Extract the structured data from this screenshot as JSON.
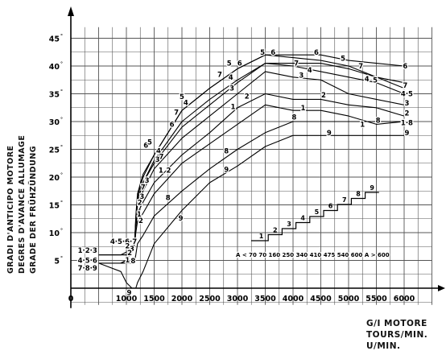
{
  "chart_data": {
    "type": "line",
    "ylabel_lines": [
      "GRADI D'ANTICIPO MOTORE",
      "DEGRES D'AVANCE ALLUMAGE",
      "GRADE DER FRÜHZÜNDUNG"
    ],
    "xlabel_lines": [
      "G/I MOTORE",
      "TOURS/MIN.",
      "U/MIN."
    ],
    "x_origin_label": "0",
    "x_ticks": [
      "1000",
      "1500",
      "2000",
      "2500",
      "3000",
      "3500",
      "4000",
      "4500",
      "5000",
      "5500",
      "6000"
    ],
    "y_ticks": [
      "5",
      "10",
      "15",
      "20",
      "25",
      "30",
      "35",
      "40",
      "45"
    ],
    "xlim": [
      0,
      6500
    ],
    "ylim": [
      -3,
      47
    ],
    "grid": true,
    "series": [
      {
        "name": "1",
        "x": [
          500,
          900,
          1000,
          1100,
          1150,
          1170,
          1200,
          1300,
          1500,
          2000,
          2500,
          3000,
          3500,
          4000,
          4500,
          5000,
          5500,
          6000
        ],
        "y": [
          6,
          6,
          6,
          6.5,
          8,
          10,
          12,
          13.5,
          17,
          22.5,
          26,
          29.5,
          33,
          32,
          32,
          31,
          29.5,
          30
        ]
      },
      {
        "name": "2",
        "x": [
          500,
          900,
          1000,
          1100,
          1150,
          1170,
          1200,
          1300,
          1500,
          2000,
          2500,
          3000,
          3500,
          4000,
          4500,
          5000,
          5500,
          6000
        ],
        "y": [
          6,
          6,
          6,
          7,
          8.5,
          11,
          13.5,
          15.5,
          19,
          24,
          28,
          32.5,
          35,
          34,
          34,
          33,
          32.5,
          31
        ]
      },
      {
        "name": "3",
        "x": [
          500,
          900,
          1000,
          1100,
          1150,
          1170,
          1200,
          1300,
          1500,
          2000,
          2500,
          3000,
          3500,
          4000,
          4500,
          5000,
          5500,
          6000
        ],
        "y": [
          6,
          6,
          6.5,
          7.5,
          9,
          12,
          15,
          17.5,
          21.5,
          27,
          31,
          35,
          39,
          38,
          37.5,
          35,
          34,
          33
        ]
      },
      {
        "name": "4",
        "x": [
          900,
          1000,
          1100,
          1150,
          1170,
          1200,
          1300,
          1500,
          2000,
          2500,
          3000,
          3500,
          4000,
          4500,
          5000,
          5500,
          6000
        ],
        "y": [
          4.5,
          5,
          6.5,
          8,
          12,
          16,
          19,
          23,
          30,
          34,
          37.5,
          40.5,
          40,
          39,
          38,
          37,
          35
        ]
      },
      {
        "name": "5",
        "x": [
          900,
          1000,
          1100,
          1150,
          1170,
          1200,
          1300,
          1500,
          2000,
          2500,
          3000,
          3500,
          4000,
          4500,
          5000,
          5500,
          6000
        ],
        "y": [
          4.5,
          5,
          7,
          8.5,
          12.5,
          16.5,
          20,
          24,
          32,
          36,
          39.5,
          42,
          41.5,
          41,
          40,
          38,
          36
        ]
      },
      {
        "name": "6",
        "x": [
          900,
          1000,
          1100,
          1150,
          1170,
          1200,
          1300,
          1500,
          2000,
          2500,
          3000,
          3500,
          4000,
          4500,
          5000,
          5500,
          6000
        ],
        "y": [
          4.5,
          5,
          7,
          8.5,
          13,
          17,
          20.5,
          24,
          32,
          36,
          39.5,
          42,
          42,
          42,
          41,
          40.5,
          40
        ]
      },
      {
        "name": "7",
        "x": [
          900,
          1000,
          1100,
          1150,
          1170,
          1200,
          1300,
          1500,
          2000,
          2500,
          3000,
          3500,
          4000,
          4500,
          5000,
          5500,
          6000
        ],
        "y": [
          4.5,
          5,
          6.5,
          8,
          12,
          15.5,
          19,
          22.5,
          29,
          33,
          37,
          40.5,
          40.5,
          40.5,
          39.5,
          38,
          37
        ]
      },
      {
        "name": "8",
        "x": [
          500,
          900,
          1000,
          1100,
          1150,
          1170,
          1200,
          1300,
          1500,
          2000,
          2500,
          3000,
          3500,
          4000,
          4500,
          5000,
          5500,
          6000
        ],
        "y": [
          4.5,
          4.5,
          4.5,
          4.5,
          5,
          6,
          8,
          9.5,
          13,
          17.5,
          21.5,
          25,
          28,
          30,
          30,
          30,
          30,
          30
        ]
      },
      {
        "name": "9",
        "x": [
          500,
          900,
          1000,
          1100,
          1150,
          1170,
          1200,
          1300,
          1500,
          2000,
          2500,
          3000,
          3500,
          4000,
          4500,
          5000,
          5500,
          6000
        ],
        "y": [
          4.5,
          3,
          1,
          0,
          0,
          0,
          1,
          3,
          8,
          14,
          19,
          22,
          25.5,
          27.5,
          27.5,
          27.5,
          27.5,
          27.5
        ]
      }
    ],
    "curve_labels": [
      {
        "text": "5",
        "x": 3450,
        "y": 42.5
      },
      {
        "text": "6",
        "x": 3640,
        "y": 42.5
      },
      {
        "text": "6",
        "x": 4420,
        "y": 42.5
      },
      {
        "text": "5",
        "x": 4900,
        "y": 41.4
      },
      {
        "text": "6",
        "x": 6020,
        "y": 40
      },
      {
        "text": "7",
        "x": 5220,
        "y": 40
      },
      {
        "text": "4",
        "x": 5330,
        "y": 37.7
      },
      {
        "text": "5",
        "x": 5480,
        "y": 37.5
      },
      {
        "text": "7",
        "x": 6020,
        "y": 36.5
      },
      {
        "text": "4·5",
        "x": 6050,
        "y": 35
      },
      {
        "text": "7",
        "x": 4060,
        "y": 40.5
      },
      {
        "text": "4",
        "x": 4300,
        "y": 39.3
      },
      {
        "text": "3",
        "x": 4150,
        "y": 38.3
      },
      {
        "text": "3",
        "x": 6050,
        "y": 33.3
      },
      {
        "text": "2",
        "x": 4550,
        "y": 34.8
      },
      {
        "text": "2",
        "x": 6050,
        "y": 31.5
      },
      {
        "text": "1",
        "x": 4180,
        "y": 32.5
      },
      {
        "text": "8",
        "x": 4020,
        "y": 30.8
      },
      {
        "text": "1",
        "x": 5250,
        "y": 29.5
      },
      {
        "text": "8",
        "x": 5530,
        "y": 30.2
      },
      {
        "text": "1·8",
        "x": 6050,
        "y": 29.8
      },
      {
        "text": "9",
        "x": 4650,
        "y": 28
      },
      {
        "text": "9",
        "x": 6050,
        "y": 28
      },
      {
        "text": "5",
        "x": 2850,
        "y": 40.5
      },
      {
        "text": "6",
        "x": 3040,
        "y": 40.5
      },
      {
        "text": "7",
        "x": 2680,
        "y": 38.5
      },
      {
        "text": "4",
        "x": 2880,
        "y": 38
      },
      {
        "text": "3",
        "x": 2900,
        "y": 36
      },
      {
        "text": "2",
        "x": 3170,
        "y": 34.6
      },
      {
        "text": "1",
        "x": 2920,
        "y": 32.7
      },
      {
        "text": "8",
        "x": 2800,
        "y": 24.7
      },
      {
        "text": "9",
        "x": 2800,
        "y": 21.4
      },
      {
        "text": "5",
        "x": 2000,
        "y": 34.5
      },
      {
        "text": "4",
        "x": 2070,
        "y": 33.4
      },
      {
        "text": "7",
        "x": 1900,
        "y": 31.7
      },
      {
        "text": "6",
        "x": 1820,
        "y": 29.5
      },
      {
        "text": "6",
        "x": 1350,
        "y": 25.7
      },
      {
        "text": "5",
        "x": 1420,
        "y": 26.3
      },
      {
        "text": "4",
        "x": 1580,
        "y": 24.7
      },
      {
        "text": "7",
        "x": 1630,
        "y": 23.7
      },
      {
        "text": "3",
        "x": 1560,
        "y": 23.2
      },
      {
        "text": "3",
        "x": 1370,
        "y": 19.4
      },
      {
        "text": "1",
        "x": 1620,
        "y": 21.2
      },
      {
        "text": "2",
        "x": 1760,
        "y": 21.2
      },
      {
        "text": "7",
        "x": 1300,
        "y": 18.2
      },
      {
        "text": "3",
        "x": 1280,
        "y": 16.5
      },
      {
        "text": "2",
        "x": 1240,
        "y": 15.4
      },
      {
        "text": "8",
        "x": 1750,
        "y": 16.3
      },
      {
        "text": "1",
        "x": 1230,
        "y": 13.3
      },
      {
        "text": "2",
        "x": 1260,
        "y": 12.2
      },
      {
        "text": "9",
        "x": 1980,
        "y": 12.6
      },
      {
        "text": "1·2·3",
        "x": 300,
        "y": 6.8
      },
      {
        "text": "4·5·6·7",
        "x": 950,
        "y": 8.4
      },
      {
        "text": "4·5·6",
        "x": 300,
        "y": 5
      },
      {
        "text": "7·8·9",
        "x": 300,
        "y": 3.6
      },
      {
        "text": "2",
        "x": 1020,
        "y": 7.6
      },
      {
        "text": "3",
        "x": 1100,
        "y": 7.1
      },
      {
        "text": "2",
        "x": 1060,
        "y": 6.4
      },
      {
        "text": "1",
        "x": 1020,
        "y": 5.1
      },
      {
        "text": "8",
        "x": 1120,
        "y": 4.9
      },
      {
        "text": "9",
        "x": 1050,
        "y": -0.8
      }
    ],
    "staircase": {
      "step_labels": [
        "1",
        "2",
        "3",
        "4",
        "5",
        "6",
        "7",
        "8",
        "9"
      ],
      "legend_text": "A < 70  70  160  250  340  410  475  540  600  A > 600"
    }
  }
}
